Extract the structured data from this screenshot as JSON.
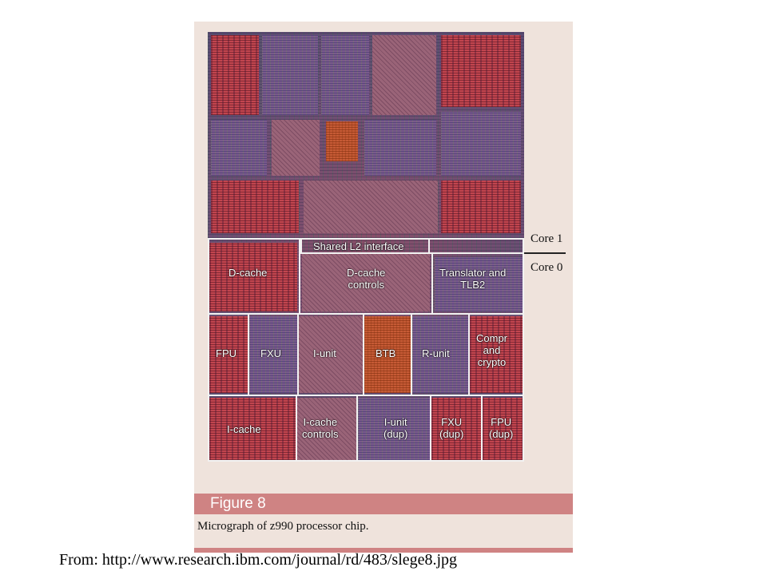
{
  "figure": {
    "number_label": "Figure 8",
    "caption": "Micrograph of z990 processor chip."
  },
  "core_labels": {
    "core1": "Core 1",
    "core0": "Core 0"
  },
  "units": {
    "shared_l2": "Shared L2 interface",
    "dcache": "D-cache",
    "dcache_controls_1": "D-cache",
    "dcache_controls_2": "controls",
    "translator_1": "Translator and",
    "translator_2": "TLB2",
    "fpu": "FPU",
    "fxu": "FXU",
    "iunit": "I-unit",
    "btb": "BTB",
    "runit": "R-unit",
    "compr_1": "Compr",
    "compr_2": "and",
    "compr_3": "crypto",
    "icache": "I-cache",
    "icache_controls_1": "I-cache",
    "icache_controls_2": "controls",
    "iunit_dup_1": "I-unit",
    "iunit_dup_2": "(dup)",
    "fxu_dup_1": "FXU",
    "fxu_dup_2": "(dup)",
    "fpu_dup_1": "FPU",
    "fpu_dup_2": "(dup)"
  },
  "source_text": "From: http://www.research.ibm.com/journal/rd/483/slege8.jpg"
}
